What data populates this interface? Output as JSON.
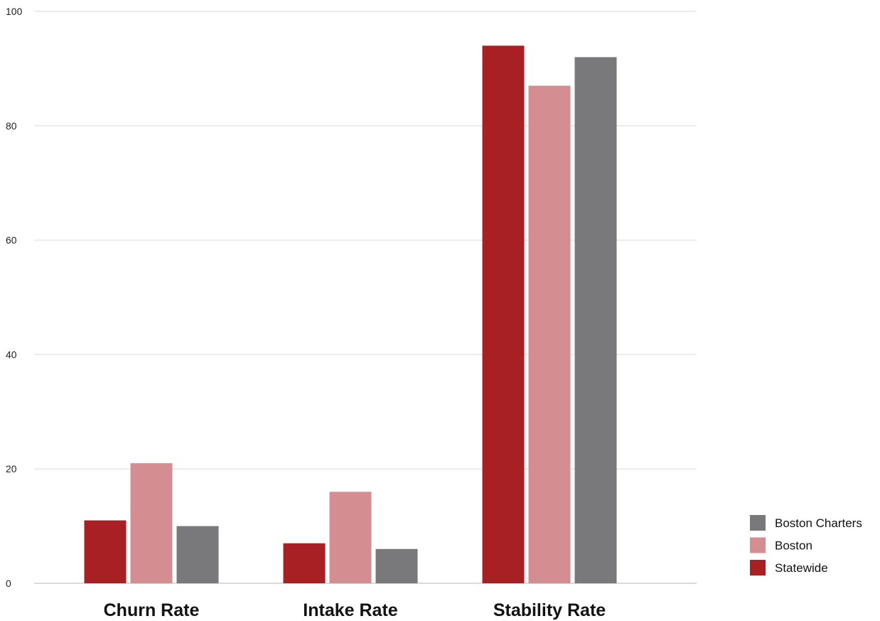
{
  "chart_data": {
    "type": "bar",
    "title": "",
    "xlabel": "",
    "ylabel": "",
    "ylim": [
      0,
      100
    ],
    "yticks": [
      0,
      20,
      40,
      60,
      80,
      100
    ],
    "grid": true,
    "legend_position": "bottom-right",
    "categories": [
      "Churn Rate",
      "Intake Rate",
      "Stability Rate"
    ],
    "series": [
      {
        "name": "Statewide",
        "color": "#a81f24",
        "values": [
          11,
          7,
          94
        ]
      },
      {
        "name": "Boston",
        "color": "#d48e92",
        "values": [
          21,
          16,
          87
        ]
      },
      {
        "name": "Boston Charters",
        "color": "#79797b",
        "values": [
          10,
          6,
          92
        ]
      }
    ],
    "legend_order": [
      "Boston Charters",
      "Boston",
      "Statewide"
    ]
  }
}
